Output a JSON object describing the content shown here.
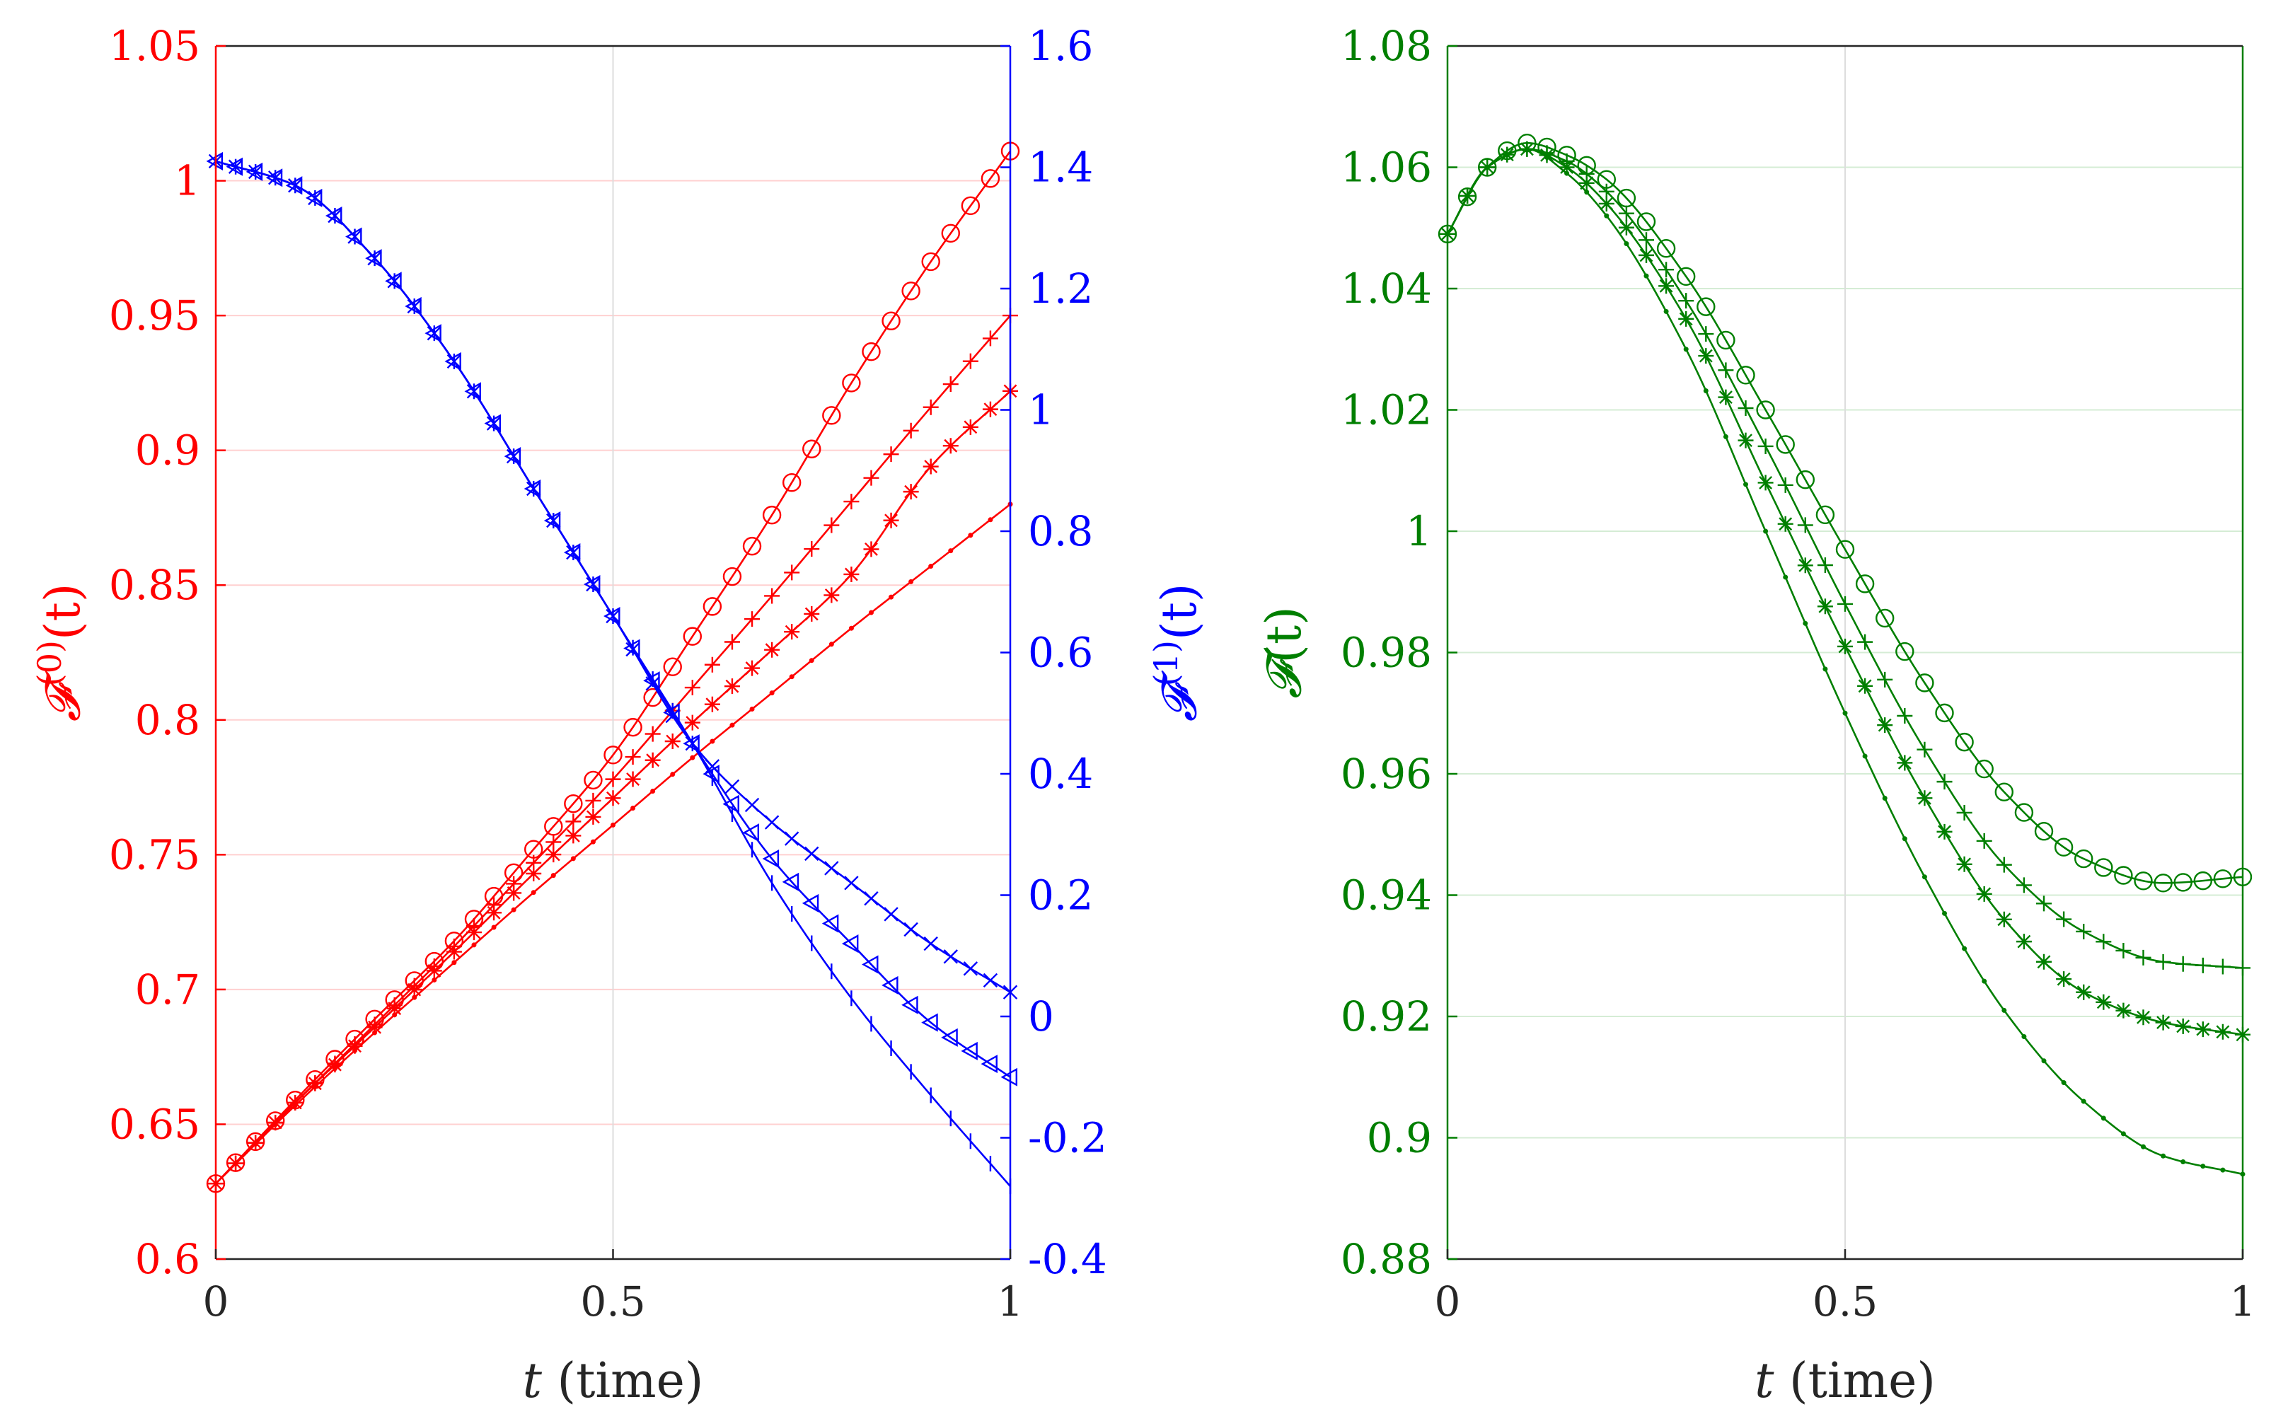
{
  "colors": {
    "red": "#ff0000",
    "blue": "#0000ff",
    "green": "#007f00",
    "black": "#262626",
    "grid_red": "#ffd0d0",
    "grid_green": "#d5ecd5",
    "grid_gray": "#dddddd"
  },
  "chart_data": [
    {
      "type": "line",
      "panel": "left",
      "xlabel_var": "t",
      "xlabel_unit": "(time)",
      "xlim": [
        0,
        1
      ],
      "x_ticks": [
        "0",
        "0.5",
        "1"
      ],
      "ylabel_left": {
        "symbol": "𝓕",
        "superscript": "(0)",
        "arg": "(t)"
      },
      "ylabel_right": {
        "symbol": "𝓕",
        "superscript": "(1)",
        "arg": "(t)"
      },
      "ylim_left": [
        0.6,
        1.05
      ],
      "ylim_right": [
        -0.4,
        1.6
      ],
      "y_ticks_left": [
        "0.6",
        "0.65",
        "0.7",
        "0.75",
        "0.8",
        "0.85",
        "0.9",
        "0.95",
        "1",
        "1.05"
      ],
      "y_ticks_right": [
        "-0.4",
        "-0.2",
        "0",
        "0.2",
        "0.4",
        "0.6",
        "0.8",
        "1",
        "1.2",
        "1.4",
        "1.6"
      ],
      "series_left": [
        {
          "name": "F0 circle",
          "marker": "circle",
          "x": [
            0,
            0.1,
            0.2,
            0.3,
            0.4,
            0.5,
            0.6,
            0.7,
            0.8,
            0.9,
            1.0
          ],
          "values": [
            0.628,
            0.659,
            0.689,
            0.718,
            0.752,
            0.787,
            0.831,
            0.876,
            0.925,
            0.97,
            1.011
          ]
        },
        {
          "name": "F0 plus",
          "marker": "plus",
          "x": [
            0,
            0.1,
            0.2,
            0.3,
            0.4,
            0.5,
            0.6,
            0.7,
            0.8,
            0.9,
            1.0
          ],
          "values": [
            0.628,
            0.658,
            0.687,
            0.716,
            0.747,
            0.778,
            0.812,
            0.846,
            0.881,
            0.916,
            0.95
          ]
        },
        {
          "name": "F0 asterisk",
          "marker": "asterisk",
          "x": [
            0,
            0.1,
            0.2,
            0.3,
            0.4,
            0.5,
            0.6,
            0.7,
            0.8,
            0.9,
            1.0
          ],
          "values": [
            0.628,
            0.658,
            0.686,
            0.714,
            0.743,
            0.771,
            0.799,
            0.826,
            0.854,
            0.894,
            0.922
          ]
        },
        {
          "name": "F0 dot",
          "marker": "dot",
          "x": [
            0,
            0.1,
            0.2,
            0.3,
            0.4,
            0.5,
            0.6,
            0.7,
            0.8,
            0.9,
            1.0
          ],
          "values": [
            0.628,
            0.657,
            0.684,
            0.71,
            0.736,
            0.761,
            0.786,
            0.81,
            0.834,
            0.857,
            0.88
          ]
        }
      ],
      "series_right": [
        {
          "name": "F1 cross",
          "marker": "cross",
          "x": [
            0,
            0.1,
            0.2,
            0.3,
            0.4,
            0.5,
            0.6,
            0.7,
            0.8,
            0.9,
            1.0
          ],
          "values": [
            1.41,
            1.37,
            1.25,
            1.08,
            0.87,
            0.66,
            0.45,
            0.32,
            0.22,
            0.12,
            0.04
          ]
        },
        {
          "name": "F1 triangle",
          "marker": "triangle",
          "x": [
            0,
            0.1,
            0.2,
            0.3,
            0.4,
            0.5,
            0.6,
            0.7,
            0.8,
            0.9,
            1.0
          ],
          "values": [
            1.41,
            1.37,
            1.25,
            1.08,
            0.87,
            0.66,
            0.45,
            0.26,
            0.12,
            -0.01,
            -0.1
          ]
        },
        {
          "name": "F1 vertical",
          "marker": "vbar",
          "x": [
            0,
            0.1,
            0.2,
            0.3,
            0.4,
            0.5,
            0.6,
            0.7,
            0.8,
            0.9,
            1.0
          ],
          "values": [
            1.41,
            1.37,
            1.25,
            1.08,
            0.87,
            0.66,
            0.45,
            0.22,
            0.03,
            -0.13,
            -0.28
          ]
        }
      ]
    },
    {
      "type": "line",
      "panel": "right",
      "xlabel_var": "t",
      "xlabel_unit": "(time)",
      "xlim": [
        0,
        1
      ],
      "x_ticks": [
        "0",
        "0.5",
        "1"
      ],
      "ylabel": {
        "symbol": "𝓕",
        "arg": "(t)"
      },
      "ylim": [
        0.88,
        1.08
      ],
      "y_ticks": [
        "0.88",
        "0.9",
        "0.92",
        "0.94",
        "0.96",
        "0.98",
        "1",
        "1.02",
        "1.04",
        "1.06",
        "1.08"
      ],
      "series": [
        {
          "name": "F circle",
          "marker": "circle",
          "x": [
            0,
            0.05,
            0.1,
            0.15,
            0.2,
            0.3,
            0.4,
            0.5,
            0.6,
            0.7,
            0.8,
            0.9,
            1.0
          ],
          "values": [
            1.049,
            1.06,
            1.064,
            1.062,
            1.058,
            1.042,
            1.02,
            0.997,
            0.975,
            0.957,
            0.946,
            0.942,
            0.943
          ]
        },
        {
          "name": "F plus",
          "marker": "plus",
          "x": [
            0,
            0.05,
            0.1,
            0.15,
            0.2,
            0.3,
            0.4,
            0.5,
            0.6,
            0.7,
            0.8,
            0.9,
            1.0
          ],
          "values": [
            1.049,
            1.06,
            1.063,
            1.061,
            1.056,
            1.038,
            1.014,
            0.988,
            0.964,
            0.945,
            0.934,
            0.929,
            0.928
          ]
        },
        {
          "name": "F asterisk",
          "marker": "asterisk",
          "x": [
            0,
            0.05,
            0.1,
            0.15,
            0.2,
            0.3,
            0.4,
            0.5,
            0.6,
            0.7,
            0.8,
            0.9,
            1.0
          ],
          "values": [
            1.049,
            1.06,
            1.063,
            1.06,
            1.054,
            1.035,
            1.008,
            0.981,
            0.956,
            0.936,
            0.924,
            0.919,
            0.917
          ]
        },
        {
          "name": "F dot",
          "marker": "dot",
          "x": [
            0,
            0.05,
            0.1,
            0.15,
            0.2,
            0.3,
            0.4,
            0.5,
            0.6,
            0.7,
            0.8,
            0.9,
            1.0
          ],
          "values": [
            1.049,
            1.06,
            1.063,
            1.059,
            1.052,
            1.03,
            1.0,
            0.97,
            0.943,
            0.921,
            0.906,
            0.897,
            0.894
          ]
        }
      ]
    }
  ]
}
